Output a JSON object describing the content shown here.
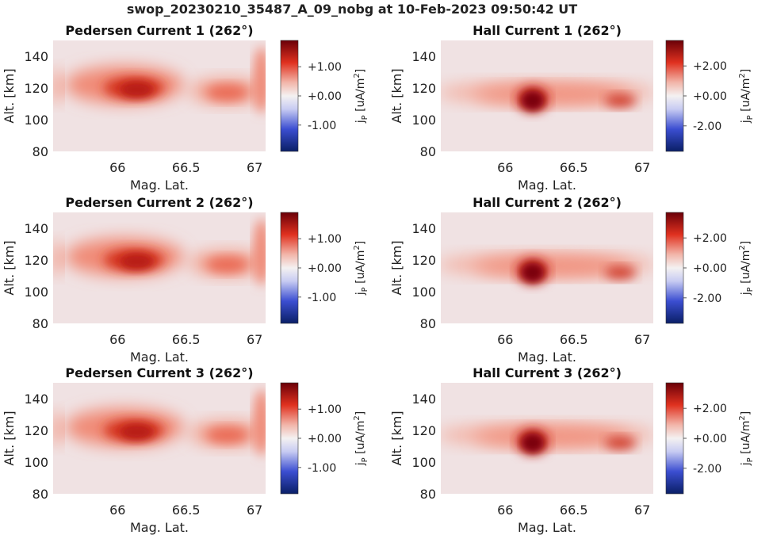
{
  "figure": {
    "suptitle": "swop_20230210_35487_A_09_nobg at 10-Feb-2023 09:50:42 UT"
  },
  "chart_data": [
    {
      "type": "heatmap",
      "title": "Pedersen Current 1 (262°)",
      "xlabel": "Mag. Lat.",
      "ylabel": "Alt. [km]",
      "xlim": [
        65.53,
        67.08
      ],
      "ylim": [
        80,
        150
      ],
      "xticks": [
        66,
        66.5,
        67
      ],
      "xtick_labels": [
        "66",
        "66.5",
        "67"
      ],
      "yticks": [
        80,
        100,
        120,
        140
      ],
      "ytick_labels": [
        "80",
        "100",
        "120",
        "140"
      ],
      "colorbar": {
        "label": "j_P [uA/m^2]",
        "label_main": "j",
        "label_sub": "P",
        "label_unit": " [uA/m",
        "label_sup": "2",
        "label_close": "]",
        "min": -1.9,
        "max": 1.9,
        "ticks": [
          1.0,
          0.0,
          -1.0
        ],
        "tick_labels": [
          "+1.00",
          "+0.00",
          "-1.00"
        ],
        "colormap": "seismic"
      },
      "grid": false
    },
    {
      "type": "heatmap",
      "title": "Hall Current 1 (262°)",
      "xlabel": "Mag. Lat.",
      "ylabel": "Alt. [km]",
      "xlim": [
        65.53,
        67.08
      ],
      "ylim": [
        80,
        150
      ],
      "xticks": [
        66,
        66.5,
        67
      ],
      "xtick_labels": [
        "66",
        "66.5",
        "67"
      ],
      "yticks": [
        80,
        100,
        120,
        140
      ],
      "ytick_labels": [
        "80",
        "100",
        "120",
        "140"
      ],
      "colorbar": {
        "label": "j_P [uA/m^2]",
        "label_main": "j",
        "label_sub": "P",
        "label_unit": " [uA/m",
        "label_sup": "2",
        "label_close": "]",
        "min": -3.7,
        "max": 3.7,
        "ticks": [
          2.0,
          0.0,
          -2.0
        ],
        "tick_labels": [
          "+2.00",
          "+0.00",
          "-2.00"
        ],
        "colormap": "seismic"
      },
      "grid": false
    },
    {
      "type": "heatmap",
      "title": "Pedersen Current 2 (262°)",
      "xlabel": "Mag. Lat.",
      "ylabel": "Alt. [km]",
      "xlim": [
        65.53,
        67.08
      ],
      "ylim": [
        80,
        150
      ],
      "xticks": [
        66,
        66.5,
        67
      ],
      "xtick_labels": [
        "66",
        "66.5",
        "67"
      ],
      "yticks": [
        80,
        100,
        120,
        140
      ],
      "ytick_labels": [
        "80",
        "100",
        "120",
        "140"
      ],
      "colorbar": {
        "label": "j_P [uA/m^2]",
        "label_main": "j",
        "label_sub": "P",
        "label_unit": " [uA/m",
        "label_sup": "2",
        "label_close": "]",
        "min": -1.9,
        "max": 1.9,
        "ticks": [
          1.0,
          0.0,
          -1.0
        ],
        "tick_labels": [
          "+1.00",
          "+0.00",
          "-1.00"
        ],
        "colormap": "seismic"
      },
      "grid": false
    },
    {
      "type": "heatmap",
      "title": "Hall Current 2 (262°)",
      "xlabel": "Mag. Lat.",
      "ylabel": "Alt. [km]",
      "xlim": [
        65.53,
        67.08
      ],
      "ylim": [
        80,
        150
      ],
      "xticks": [
        66,
        66.5,
        67
      ],
      "xtick_labels": [
        "66",
        "66.5",
        "67"
      ],
      "yticks": [
        80,
        100,
        120,
        140
      ],
      "ytick_labels": [
        "80",
        "100",
        "120",
        "140"
      ],
      "colorbar": {
        "label": "j_P [uA/m^2]",
        "label_main": "j",
        "label_sub": "P",
        "label_unit": " [uA/m",
        "label_sup": "2",
        "label_close": "]",
        "min": -3.7,
        "max": 3.7,
        "ticks": [
          2.0,
          0.0,
          -2.0
        ],
        "tick_labels": [
          "+2.00",
          "+0.00",
          "-2.00"
        ],
        "colormap": "seismic"
      },
      "grid": false
    },
    {
      "type": "heatmap",
      "title": "Pedersen Current 3 (262°)",
      "xlabel": "Mag. Lat.",
      "ylabel": "Alt. [km]",
      "xlim": [
        65.53,
        67.08
      ],
      "ylim": [
        80,
        150
      ],
      "xticks": [
        66,
        66.5,
        67
      ],
      "xtick_labels": [
        "66",
        "66.5",
        "67"
      ],
      "yticks": [
        80,
        100,
        120,
        140
      ],
      "ytick_labels": [
        "80",
        "100",
        "120",
        "140"
      ],
      "colorbar": {
        "label": "j_P [uA/m^2]",
        "label_main": "j",
        "label_sub": "P",
        "label_unit": " [uA/m",
        "label_sup": "2",
        "label_close": "]",
        "min": -1.9,
        "max": 1.9,
        "ticks": [
          1.0,
          0.0,
          -1.0
        ],
        "tick_labels": [
          "+1.00",
          "+0.00",
          "-1.00"
        ],
        "colormap": "seismic"
      },
      "grid": false
    },
    {
      "type": "heatmap",
      "title": "Hall Current 3 (262°)",
      "xlabel": "Mag. Lat.",
      "ylabel": "Alt. [km]",
      "xlim": [
        65.53,
        67.08
      ],
      "ylim": [
        80,
        150
      ],
      "xticks": [
        66,
        66.5,
        67
      ],
      "xtick_labels": [
        "66",
        "66.5",
        "67"
      ],
      "yticks": [
        80,
        100,
        120,
        140
      ],
      "ytick_labels": [
        "80",
        "100",
        "120",
        "140"
      ],
      "colorbar": {
        "label": "j_P [uA/m^2]",
        "label_main": "j",
        "label_sub": "P",
        "label_unit": " [uA/m",
        "label_sup": "2",
        "label_close": "]",
        "min": -3.7,
        "max": 3.7,
        "ticks": [
          2.0,
          0.0,
          -2.0
        ],
        "tick_labels": [
          "+2.00",
          "+0.00",
          "-2.00"
        ],
        "colormap": "seismic"
      },
      "grid": false
    }
  ]
}
